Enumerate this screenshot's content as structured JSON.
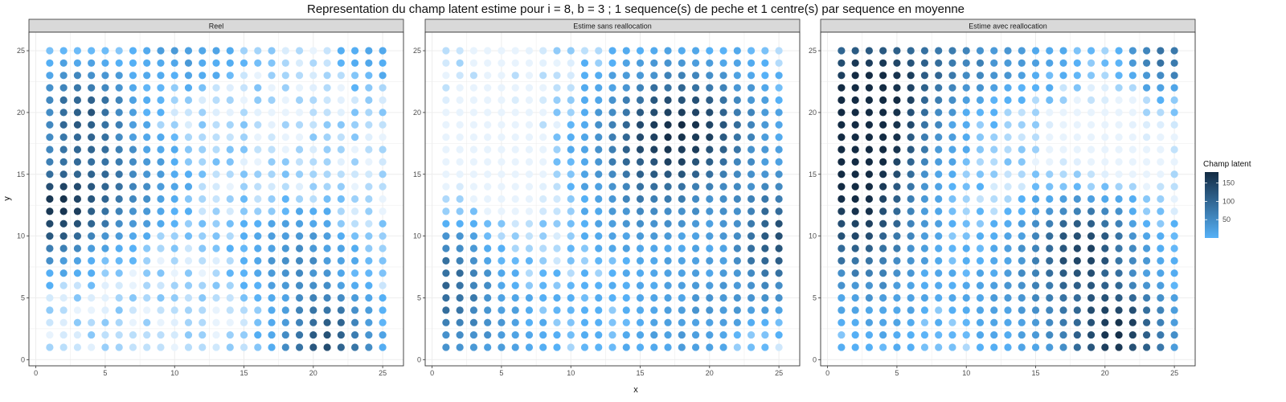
{
  "chart_data": {
    "type": "scatter",
    "title": "Representation du champ latent estime pour i = 8, b = 3 ; 1 sequence(s) de peche et 1 centre(s) par sequence en moyenne",
    "xlabel": "x",
    "ylabel": "y",
    "xlim": [
      -0.5,
      26.5
    ],
    "ylim": [
      -0.5,
      26.5
    ],
    "x_ticks": [
      0,
      5,
      10,
      15,
      20,
      25
    ],
    "y_ticks": [
      0,
      5,
      10,
      15,
      20,
      25
    ],
    "grid": true,
    "grid_x": [
      1,
      25
    ],
    "grid_y": [
      1,
      25
    ],
    "legend": {
      "title": "Champ latent",
      "position": "right",
      "ticks": [
        50,
        100,
        150
      ],
      "range": [
        0,
        180
      ],
      "color_low": "#56B1F7",
      "color_high": "#132B43"
    },
    "panel_color_scale": {
      "estime_light_low": "#e8f3fd",
      "estime_light_high": "#56B1F7"
    },
    "panels": [
      {
        "label": "Reel",
        "value_range": [
          0,
          180
        ],
        "hotspots": [
          {
            "cx": 1,
            "cy": 12,
            "sx": 2.6,
            "sy": 2.6,
            "amp": 150
          },
          {
            "cx": 3.5,
            "cy": 20,
            "sx": 2.2,
            "sy": 2.5,
            "amp": 120
          },
          {
            "cx": 6,
            "cy": 14,
            "sx": 3.0,
            "sy": 2.5,
            "amp": 70
          },
          {
            "cx": 21,
            "cy": 1.5,
            "sx": 2.2,
            "sy": 2.5,
            "amp": 130
          },
          {
            "cx": 19,
            "cy": 8.5,
            "sx": 2.5,
            "sy": 2.5,
            "amp": 55
          },
          {
            "cx": 10.5,
            "cy": 25,
            "sx": 2.5,
            "sy": 2.0,
            "amp": 40
          },
          {
            "cx": 25,
            "cy": 25,
            "sx": 2.0,
            "sy": 2.0,
            "amp": 30
          }
        ],
        "base": 5
      },
      {
        "label": "Estime sans reallocation",
        "value_range": [
          0,
          180
        ],
        "hotspots": [
          {
            "cx": 18,
            "cy": 19,
            "sx": 3.5,
            "sy": 3.0,
            "amp": 150
          },
          {
            "cx": 25,
            "cy": 10,
            "sx": 2.2,
            "sy": 3.0,
            "amp": 120
          },
          {
            "cx": 1,
            "cy": 6.5,
            "sx": 2.3,
            "sy": 3.0,
            "amp": 90
          },
          {
            "cx": 16,
            "cy": 14,
            "sx": 3.5,
            "sy": 3.5,
            "amp": 60
          },
          {
            "cx": 20,
            "cy": 3,
            "sx": 4.0,
            "sy": 3.0,
            "amp": 45
          },
          {
            "cx": 3,
            "cy": 2,
            "sx": 4.0,
            "sy": 3.0,
            "amp": 30
          }
        ],
        "base": 10,
        "low_zones": [
          {
            "cx": 4,
            "cy": 17,
            "sx": 4.0,
            "sy": 5.0
          },
          {
            "cx": 23,
            "cy": 1.5,
            "sx": 3.0,
            "sy": 2.0
          }
        ]
      },
      {
        "label": "Estime avec reallocation",
        "value_range": [
          0,
          180
        ],
        "hotspots": [
          {
            "cx": 2,
            "cy": 14,
            "sx": 3.0,
            "sy": 6.0,
            "amp": 170
          },
          {
            "cx": 3.5,
            "cy": 20,
            "sx": 3.0,
            "sy": 3.0,
            "amp": 110
          },
          {
            "cx": 6,
            "cy": 24,
            "sx": 6.0,
            "sy": 2.0,
            "amp": 80
          },
          {
            "cx": 18.5,
            "cy": 9.5,
            "sx": 2.5,
            "sy": 2.5,
            "amp": 130
          },
          {
            "cx": 21,
            "cy": 2,
            "sx": 2.5,
            "sy": 2.5,
            "amp": 150
          },
          {
            "cx": 24.5,
            "cy": 24.5,
            "sx": 1.8,
            "sy": 1.8,
            "amp": 90
          },
          {
            "cx": 16,
            "cy": 5,
            "sx": 4.0,
            "sy": 3.0,
            "amp": 45
          }
        ],
        "base": 10,
        "low_zones": [
          {
            "cx": 20,
            "cy": 17,
            "sx": 3.5,
            "sy": 3.5
          },
          {
            "cx": 1,
            "cy": 6,
            "sx": 1.8,
            "sy": 3.0
          }
        ]
      }
    ]
  }
}
